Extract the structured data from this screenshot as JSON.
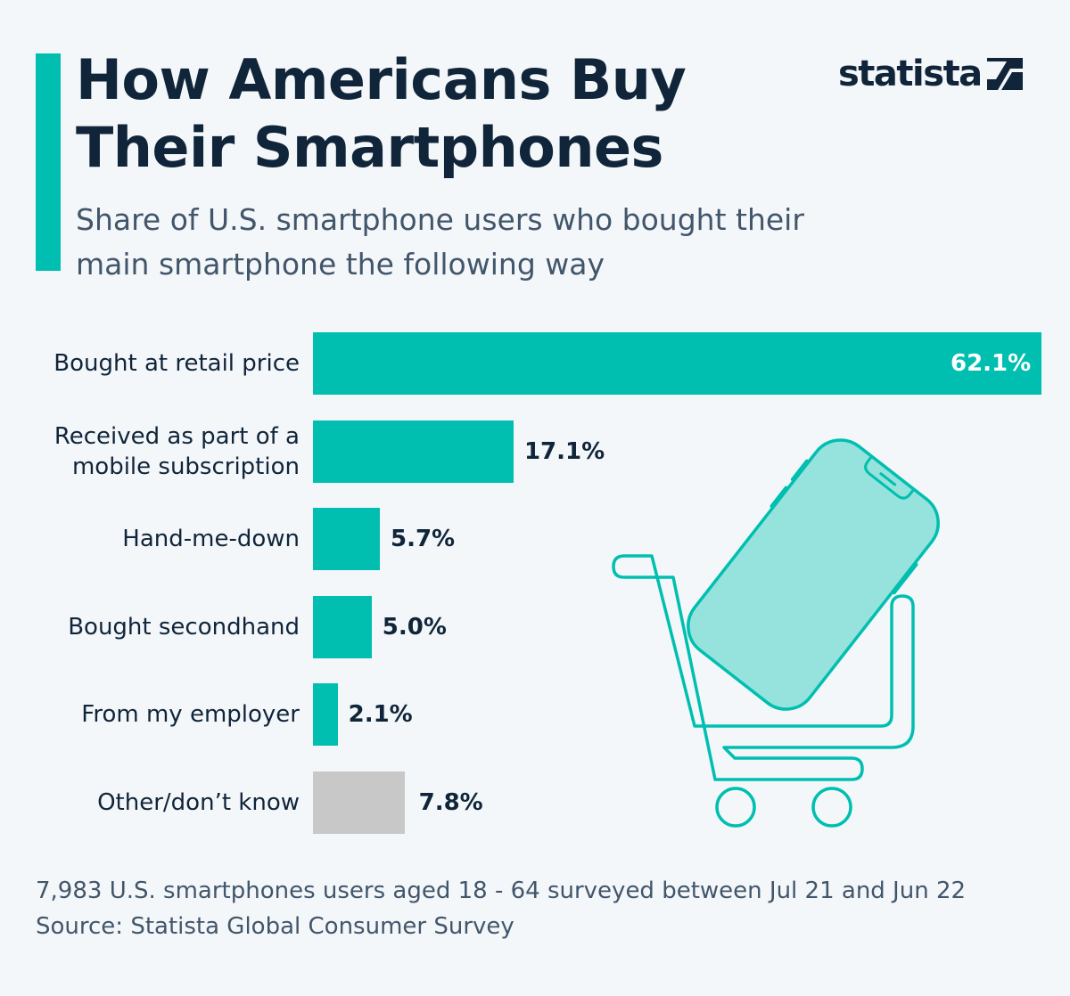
{
  "header": {
    "title": "How Americans Buy Their Smartphones",
    "subtitle": "Share of U.S. smartphone users who bought their main smartphone the following way"
  },
  "logo": {
    "text": "statista"
  },
  "chart_data": {
    "type": "bar",
    "orientation": "horizontal",
    "title": "How Americans Buy Their Smartphones",
    "subtitle": "Share of U.S. smartphone users who bought their main smartphone the following way",
    "categories": [
      "Bought at retail price",
      "Received as part of a mobile subscription",
      "Hand-me-down",
      "Bought secondhand",
      "From my employer",
      "Other/don’t know"
    ],
    "values": [
      62.1,
      17.1,
      5.7,
      5.0,
      2.1,
      7.8
    ],
    "value_labels": [
      "62.1%",
      "17.1%",
      "5.7%",
      "5.0%",
      "2.1%",
      "7.8%"
    ],
    "unit": "%",
    "xlim": [
      0,
      62.1
    ],
    "colors": [
      "#00bfb0",
      "#00bfb0",
      "#00bfb0",
      "#00bfb0",
      "#00bfb0",
      "#c8c8c8"
    ],
    "xlabel": "",
    "ylabel": ""
  },
  "footer": {
    "note": "7,983 U.S. smartphones users aged 18 - 64 surveyed between Jul 21 and Jun 22",
    "source": "Source: Statista Global Consumer Survey"
  },
  "colors": {
    "accent": "#00bfb0",
    "other": "#c8c8c8",
    "text_dark": "#10253a",
    "text_muted": "#42566b",
    "background": "#f4f7fa",
    "phone_fill": "#96e2dc"
  },
  "illustration": {
    "icon": "shopping-cart-with-smartphone-icon"
  }
}
